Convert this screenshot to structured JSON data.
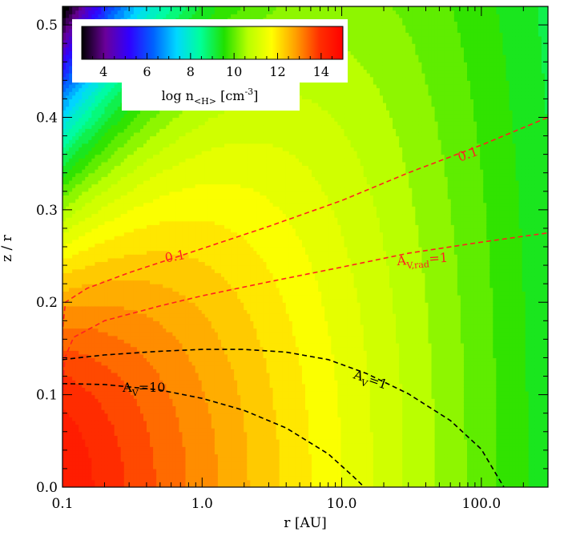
{
  "chart_data": {
    "type": "heatmap",
    "title": "",
    "xlabel": "r [AU]",
    "ylabel": "z / r",
    "xscale": "log",
    "xlim": [
      0.1,
      300
    ],
    "ylim": [
      0.0,
      0.52
    ],
    "xticks": [
      {
        "value": 0.1,
        "label": "0.1"
      },
      {
        "value": 1.0,
        "label": "1.0"
      },
      {
        "value": 10.0,
        "label": "10.0"
      },
      {
        "value": 100.0,
        "label": "100.0"
      }
    ],
    "yticks": [
      {
        "value": 0.0,
        "label": "0.0"
      },
      {
        "value": 0.1,
        "label": "0.1"
      },
      {
        "value": 0.2,
        "label": "0.2"
      },
      {
        "value": 0.3,
        "label": "0.3"
      },
      {
        "value": 0.4,
        "label": "0.4"
      },
      {
        "value": 0.5,
        "label": "0.5"
      }
    ],
    "colorbar": {
      "label": "log n<H> [cm-3]",
      "label_main": "log n",
      "label_sub": "<H>",
      "label_unit": " [cm",
      "label_exp": "-3",
      "label_close": "]",
      "range": [
        3,
        15
      ],
      "ticks": [
        {
          "value": 4,
          "label": "4"
        },
        {
          "value": 6,
          "label": "6"
        },
        {
          "value": 8,
          "label": "8"
        },
        {
          "value": 10,
          "label": "10"
        },
        {
          "value": 12,
          "label": "12"
        },
        {
          "value": 14,
          "label": "14"
        }
      ],
      "placement": "top-left",
      "colormap": [
        "#000000",
        "#6a009a",
        "#3000ff",
        "#0060ff",
        "#00d8ff",
        "#00ff99",
        "#20e000",
        "#b8ff00",
        "#ffff00",
        "#ffa000",
        "#ff3000",
        "#ff0000"
      ]
    },
    "field": {
      "description_free_values": true,
      "midplane_log_n_at_r0_1": 14.5,
      "scale_height_ratio_at_r0_1": 0.07,
      "flaring_exponent": 0.25,
      "radial_density_slope": 1.5,
      "floor_log_n": 3
    },
    "contours": [
      {
        "label": "A_V=10",
        "label_main": "A",
        "label_sub": "V",
        "label_tail": "=10",
        "color": "#000000",
        "points": [
          [
            0.1,
            0.112
          ],
          [
            0.2,
            0.111
          ],
          [
            0.5,
            0.105
          ],
          [
            1.0,
            0.096
          ],
          [
            2.0,
            0.083
          ],
          [
            4.0,
            0.064
          ],
          [
            8.0,
            0.036
          ],
          [
            12.0,
            0.012
          ],
          [
            14.5,
            0.0
          ]
        ]
      },
      {
        "label": "A_V=1",
        "label_main": "A",
        "label_sub": "V",
        "label_tail": "=1",
        "color": "#000000",
        "points": [
          [
            0.1,
            0.138
          ],
          [
            0.2,
            0.143
          ],
          [
            0.5,
            0.147
          ],
          [
            1.0,
            0.149
          ],
          [
            2.0,
            0.149
          ],
          [
            4.0,
            0.146
          ],
          [
            8.0,
            0.138
          ],
          [
            15.0,
            0.123
          ],
          [
            30.0,
            0.101
          ],
          [
            60.0,
            0.072
          ],
          [
            100.0,
            0.041
          ],
          [
            130.0,
            0.012
          ],
          [
            145.0,
            0.0
          ]
        ]
      },
      {
        "label": "A_V,rad=1",
        "label_main": "A",
        "label_sub": "V,rad",
        "label_tail": "=1",
        "color": "#ff2020",
        "points": [
          [
            0.1,
            0.0
          ],
          [
            0.1,
            0.1
          ],
          [
            0.104,
            0.14
          ],
          [
            0.12,
            0.162
          ],
          [
            0.2,
            0.18
          ],
          [
            0.5,
            0.196
          ],
          [
            1.0,
            0.207
          ],
          [
            3.0,
            0.222
          ],
          [
            10.0,
            0.238
          ],
          [
            30.0,
            0.253
          ],
          [
            100.0,
            0.265
          ],
          [
            300.0,
            0.275
          ]
        ]
      },
      {
        "label": "0.1",
        "label_main": "0.1",
        "label_sub": "",
        "label_tail": "",
        "color": "#ff2020",
        "points": [
          [
            0.1,
            0.0
          ],
          [
            0.1,
            0.17
          ],
          [
            0.105,
            0.2
          ],
          [
            0.15,
            0.215
          ],
          [
            0.3,
            0.232
          ],
          [
            1.0,
            0.258
          ],
          [
            3.0,
            0.282
          ],
          [
            10.0,
            0.31
          ],
          [
            30.0,
            0.34
          ],
          [
            100.0,
            0.37
          ],
          [
            300.0,
            0.4
          ]
        ]
      }
    ],
    "contour_labels": [
      {
        "text_main": "A",
        "text_sub": "V",
        "text_tail": "=10",
        "x": 0.27,
        "y": 0.103,
        "color": "#000000",
        "angle": 0
      },
      {
        "text_main": "A",
        "text_sub": "V",
        "text_tail": "=1",
        "x": 12.0,
        "y": 0.118,
        "color": "#000000",
        "angle": 19
      },
      {
        "text_main": "A",
        "text_sub": "V,rad",
        "text_tail": "=1",
        "x": 25.0,
        "y": 0.24,
        "color": "#ff2020",
        "angle": -4
      },
      {
        "text_main": "0.1",
        "text_sub": "",
        "text_tail": "",
        "x": 0.55,
        "y": 0.243,
        "color": "#ff2020",
        "angle": -11
      },
      {
        "text_main": "0.1",
        "text_sub": "",
        "text_tail": "",
        "x": 70.0,
        "y": 0.352,
        "color": "#ff2020",
        "angle": -20
      },
      {
        "text_main": "A",
        "text_sub": "V,rad",
        "text_tail": "=1",
        "x": 0.097,
        "y": 0.09,
        "color": "#ff2020",
        "angle": -90,
        "vertical": true
      },
      {
        "text_main": "0.1",
        "text_sub": "",
        "text_tail": "",
        "x": 0.097,
        "y": 0.005,
        "color": "#ff2020",
        "angle": -90,
        "vertical": true
      }
    ]
  }
}
